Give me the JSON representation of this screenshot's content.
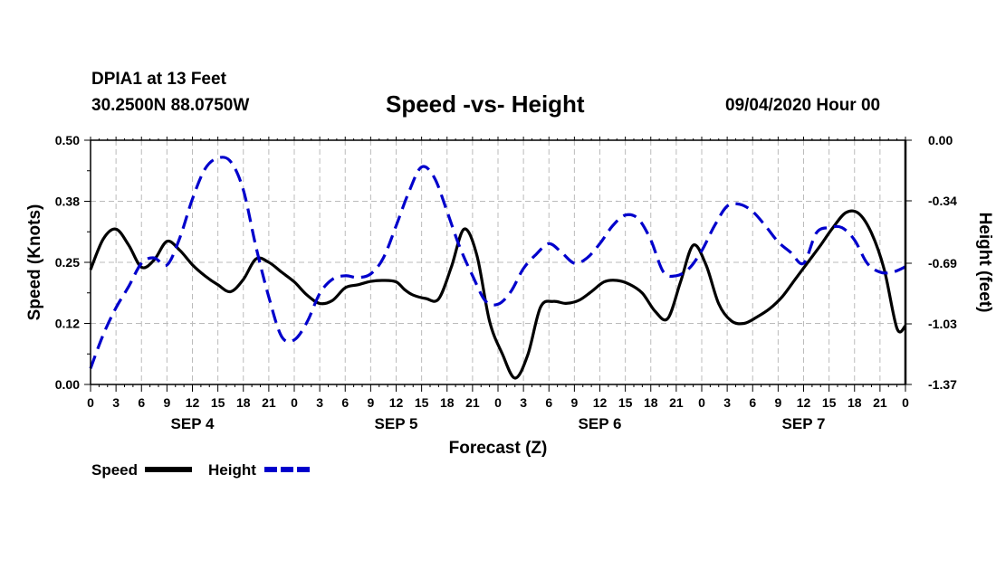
{
  "header": {
    "station": "DPIA1 at 13 Feet",
    "coords": "30.2500N 88.0750W",
    "title": "Speed -vs- Height",
    "issued": "09/04/2020 Hour 00"
  },
  "colors": {
    "speed": "#000000",
    "height": "#0000cc",
    "grid": "#bbbbbb"
  },
  "chart_data": {
    "type": "line",
    "title": "Speed -vs- Height",
    "xlabel": "Forecast (Z)",
    "ylabel_left": "Speed (Knots)",
    "ylabel_right": "Height (feet)",
    "xlim": [
      0,
      96
    ],
    "ylim_left": [
      0,
      0.5
    ],
    "ylim_right": [
      -1.37,
      0
    ],
    "x_tick_labels": [
      "0",
      "3",
      "6",
      "9",
      "12",
      "15",
      "18",
      "21",
      "0",
      "3",
      "6",
      "9",
      "12",
      "15",
      "18",
      "21",
      "0",
      "3",
      "6",
      "9",
      "12",
      "15",
      "18",
      "21",
      "0",
      "3",
      "6",
      "9",
      "12",
      "15",
      "18",
      "21",
      "0"
    ],
    "left_tick_labels": [
      "0.00",
      "0.12",
      "0.25",
      "0.38",
      "0.50"
    ],
    "left_tick_values": [
      0,
      0.125,
      0.25,
      0.375,
      0.5
    ],
    "right_tick_labels": [
      "-1.37",
      "-1.03",
      "-0.69",
      "-0.34",
      "0.00"
    ],
    "right_tick_values": [
      -1.37,
      -1.03,
      -0.69,
      -0.34,
      0
    ],
    "day_labels": [
      {
        "label": "SEP 4",
        "hour": 12
      },
      {
        "label": "SEP 5",
        "hour": 36
      },
      {
        "label": "SEP 6",
        "hour": 60
      },
      {
        "label": "SEP 7",
        "hour": 84
      }
    ],
    "legend": [
      "Speed",
      "Height"
    ],
    "series": [
      {
        "name": "Speed",
        "axis": "left",
        "style": "solid",
        "x": [
          0,
          1.5,
          3,
          4.5,
          6,
          7.5,
          9,
          10.5,
          12,
          13.5,
          15,
          16.5,
          18,
          19.5,
          21,
          22.5,
          24,
          25.5,
          27,
          28.5,
          30,
          31.5,
          33,
          34.5,
          36,
          37,
          38,
          39.5,
          41,
          42.5,
          44,
          45.5,
          47,
          48.5,
          50,
          51.5,
          53,
          54.5,
          56,
          57.5,
          59,
          60.5,
          62,
          63.5,
          65,
          66.5,
          68,
          69.5,
          71,
          72.5,
          74,
          75.5,
          77,
          78.5,
          80,
          81.5,
          83,
          84.5,
          86,
          87.5,
          89,
          90.5,
          92,
          93.5,
          95,
          96
        ],
        "values": [
          0.235,
          0.298,
          0.318,
          0.285,
          0.24,
          0.255,
          0.293,
          0.275,
          0.245,
          0.222,
          0.204,
          0.19,
          0.215,
          0.257,
          0.25,
          0.23,
          0.21,
          0.183,
          0.166,
          0.172,
          0.198,
          0.204,
          0.211,
          0.213,
          0.21,
          0.194,
          0.183,
          0.176,
          0.175,
          0.24,
          0.318,
          0.265,
          0.13,
          0.063,
          0.013,
          0.06,
          0.158,
          0.17,
          0.166,
          0.172,
          0.19,
          0.21,
          0.213,
          0.205,
          0.187,
          0.15,
          0.135,
          0.21,
          0.285,
          0.245,
          0.165,
          0.13,
          0.125,
          0.138,
          0.155,
          0.18,
          0.215,
          0.25,
          0.285,
          0.322,
          0.352,
          0.35,
          0.31,
          0.235,
          0.115,
          0.12
        ]
      },
      {
        "name": "Height",
        "axis": "right",
        "style": "dashed",
        "x": [
          0,
          1.5,
          3,
          4.5,
          6,
          7.5,
          9,
          10.5,
          12,
          13.5,
          15,
          16.5,
          18,
          19.5,
          21,
          22.5,
          24,
          25.5,
          27,
          28.5,
          30,
          31.5,
          33,
          34.5,
          36,
          37.5,
          39,
          40.5,
          42,
          43.5,
          45,
          46.5,
          48,
          49.5,
          51,
          52.5,
          54,
          55.5,
          57,
          58.5,
          60,
          61.5,
          63,
          64.5,
          66,
          67.5,
          69,
          70.5,
          72,
          73.5,
          75,
          76.5,
          78,
          79.5,
          81,
          82.5,
          84,
          85.5,
          87,
          88.5,
          90,
          91.5,
          93,
          94.5,
          96
        ],
        "values": [
          -1.28,
          -1.09,
          -0.94,
          -0.82,
          -0.69,
          -0.66,
          -0.7,
          -0.55,
          -0.33,
          -0.16,
          -0.1,
          -0.12,
          -0.28,
          -0.6,
          -0.88,
          -1.1,
          -1.12,
          -1.02,
          -0.86,
          -0.78,
          -0.76,
          -0.77,
          -0.75,
          -0.66,
          -0.48,
          -0.29,
          -0.15,
          -0.21,
          -0.4,
          -0.6,
          -0.76,
          -0.9,
          -0.92,
          -0.85,
          -0.72,
          -0.64,
          -0.58,
          -0.63,
          -0.69,
          -0.66,
          -0.58,
          -0.48,
          -0.42,
          -0.44,
          -0.56,
          -0.74,
          -0.76,
          -0.72,
          -0.62,
          -0.48,
          -0.37,
          -0.36,
          -0.4,
          -0.48,
          -0.57,
          -0.63,
          -0.69,
          -0.52,
          -0.49,
          -0.49,
          -0.56,
          -0.69,
          -0.74,
          -0.74,
          -0.71
        ]
      }
    ]
  }
}
